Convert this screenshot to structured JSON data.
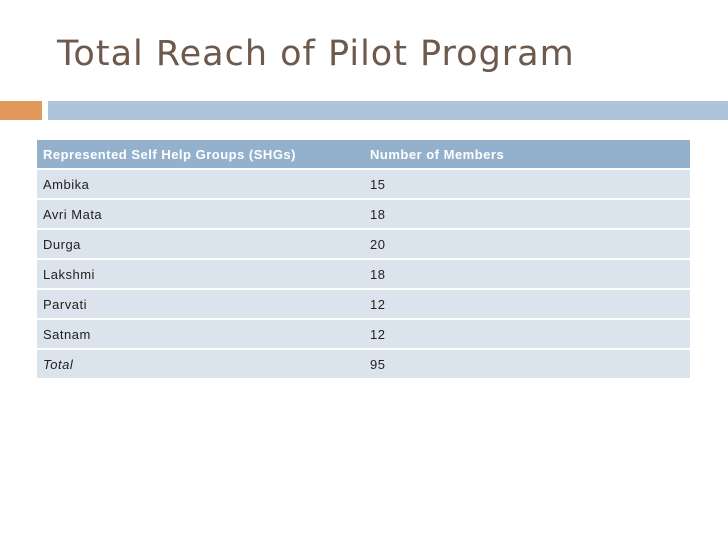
{
  "slide": {
    "title": "Total Reach of Pilot Program"
  },
  "table": {
    "headers": [
      "Represented Self Help Groups (SHGs)",
      "Number of Members"
    ],
    "rows": [
      [
        "Ambika",
        "15"
      ],
      [
        "Avri Mata",
        "18"
      ],
      [
        "Durga",
        "20"
      ],
      [
        "Lakshmi",
        "18"
      ],
      [
        "Parvati",
        "12"
      ],
      [
        "Satnam",
        "12"
      ]
    ],
    "total": [
      "Total",
      "95"
    ]
  },
  "colors": {
    "title": "#6e5a4c",
    "accent_orange": "#e0995a",
    "accent_blue": "#aec4d9",
    "header_bg": "#93b1cd",
    "row_bg": "#dbe3ec"
  }
}
